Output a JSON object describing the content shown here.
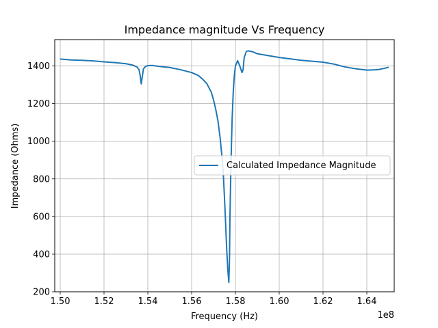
{
  "chart_data": {
    "type": "line",
    "title": "Impedance magnitude Vs Frequency",
    "xlabel": "Frequency (Hz)",
    "ylabel": "Impedance (Ohms)",
    "x_offset_text": "1e8",
    "x_scale": 100000000,
    "xlim": [
      1.4975,
      1.6525
    ],
    "ylim": [
      200,
      1540
    ],
    "x_ticks": [
      1.5,
      1.52,
      1.54,
      1.56,
      1.58,
      1.6,
      1.62,
      1.64
    ],
    "x_tick_labels": [
      "1.50",
      "1.52",
      "1.54",
      "1.56",
      "1.58",
      "1.60",
      "1.62",
      "1.64"
    ],
    "y_ticks": [
      200,
      400,
      600,
      800,
      1000,
      1200,
      1400
    ],
    "y_tick_labels": [
      "200",
      "400",
      "600",
      "800",
      "1000",
      "1200",
      "1400"
    ],
    "grid": true,
    "legend_position": "center-right",
    "series": [
      {
        "name": "Calculated Impedance Magnitude",
        "color": "#1f77b4",
        "x": [
          1.5,
          1.505,
          1.51,
          1.515,
          1.52,
          1.525,
          1.53,
          1.533,
          1.535,
          1.536,
          1.5365,
          1.537,
          1.5375,
          1.538,
          1.539,
          1.54,
          1.542,
          1.545,
          1.55,
          1.555,
          1.56,
          1.563,
          1.565,
          1.567,
          1.569,
          1.57,
          1.571,
          1.572,
          1.573,
          1.574,
          1.5745,
          1.575,
          1.5755,
          1.576,
          1.5765,
          1.577,
          1.5773,
          1.5775,
          1.578,
          1.5785,
          1.579,
          1.5795,
          1.58,
          1.581,
          1.582,
          1.583,
          1.5835,
          1.584,
          1.585,
          1.586,
          1.588,
          1.59,
          1.595,
          1.6,
          1.605,
          1.61,
          1.615,
          1.62,
          1.625,
          1.63,
          1.635,
          1.64,
          1.645,
          1.65
        ],
        "y": [
          1437,
          1432,
          1430,
          1427,
          1422,
          1418,
          1412,
          1405,
          1395,
          1380,
          1350,
          1305,
          1345,
          1385,
          1398,
          1402,
          1403,
          1398,
          1392,
          1380,
          1365,
          1350,
          1330,
          1305,
          1260,
          1220,
          1170,
          1110,
          1020,
          900,
          820,
          700,
          570,
          430,
          320,
          250,
          380,
          600,
          900,
          1120,
          1260,
          1350,
          1400,
          1428,
          1400,
          1365,
          1380,
          1445,
          1478,
          1480,
          1475,
          1465,
          1455,
          1445,
          1438,
          1430,
          1425,
          1420,
          1410,
          1395,
          1385,
          1378,
          1380,
          1393
        ]
      }
    ]
  }
}
